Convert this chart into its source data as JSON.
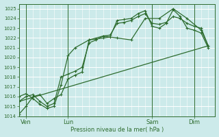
{
  "xlabel": "Pression niveau de la mer( hPa )",
  "bg_color": "#cceaea",
  "grid_color": "#ffffff",
  "line_color": "#2d6b2d",
  "ylim": [
    1014,
    1025.5
  ],
  "yticks": [
    1014,
    1015,
    1016,
    1017,
    1018,
    1019,
    1020,
    1021,
    1022,
    1023,
    1024,
    1025
  ],
  "xtick_labels": [
    "Ven",
    "Lun",
    "Sam",
    "Dim"
  ],
  "xtick_positions": [
    0.5,
    3.5,
    9.5,
    12.5
  ],
  "vline_positions": [
    0.5,
    3.5,
    9.5,
    12.5
  ],
  "xlim": [
    0,
    14
  ],
  "series1_x": [
    0,
    0.5,
    1,
    1.5,
    2,
    2.5,
    3,
    3.5,
    4,
    4.5,
    5,
    5.5,
    6,
    6.5,
    7,
    7.5,
    8,
    8.5,
    9,
    9.5,
    10,
    10.5,
    11,
    11.5,
    12,
    12.5,
    13,
    13.5
  ],
  "series1_y": [
    1014.2,
    1015.0,
    1016.0,
    1016.2,
    1015.3,
    1015.8,
    1016.2,
    1017.8,
    1018.2,
    1018.5,
    1021.8,
    1021.9,
    1022.0,
    1022.1,
    1023.8,
    1023.9,
    1024.0,
    1024.5,
    1024.8,
    1023.2,
    1023.0,
    1023.5,
    1024.9,
    1024.2,
    1023.0,
    1022.8,
    1022.5,
    1021.0
  ],
  "series2_x": [
    0,
    0.5,
    1,
    1.5,
    2,
    2.5,
    3,
    3.5,
    4,
    4.5,
    5,
    5.5,
    6,
    6.5,
    7,
    7.5,
    8,
    8.5,
    9,
    9.5,
    10,
    10.5,
    11,
    11.5,
    12,
    12.5,
    13,
    13.5
  ],
  "series2_y": [
    1015.5,
    1016.0,
    1016.2,
    1015.5,
    1015.0,
    1015.3,
    1018.0,
    1018.3,
    1018.6,
    1019.0,
    1021.5,
    1021.8,
    1022.2,
    1022.3,
    1023.5,
    1023.6,
    1023.8,
    1024.2,
    1024.5,
    1023.5,
    1023.4,
    1023.6,
    1024.2,
    1024.0,
    1023.5,
    1023.2,
    1023.0,
    1021.2
  ],
  "series3_x": [
    0,
    13.5
  ],
  "series3_y": [
    1015.5,
    1021.2
  ],
  "series4_x": [
    0,
    0.5,
    1,
    1.5,
    2,
    2.5,
    3,
    3.5,
    4,
    5,
    6,
    7,
    8,
    9,
    10,
    11,
    12,
    13,
    13.5
  ],
  "series4_y": [
    1016.0,
    1016.3,
    1015.8,
    1015.2,
    1014.8,
    1015.0,
    1017.2,
    1020.2,
    1021.0,
    1021.8,
    1022.2,
    1022.0,
    1021.8,
    1024.0,
    1024.0,
    1025.0,
    1024.0,
    1022.8,
    1021.2
  ]
}
